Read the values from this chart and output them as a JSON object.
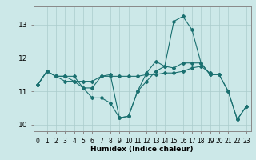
{
  "title": "",
  "xlabel": "Humidex (Indice chaleur)",
  "background_color": "#cce8e8",
  "grid_color": "#aacccc",
  "line_color": "#1a7070",
  "xlim": [
    -0.5,
    23.5
  ],
  "ylim": [
    9.8,
    13.55
  ],
  "yticks": [
    10,
    11,
    12,
    13
  ],
  "xticks": [
    0,
    1,
    2,
    3,
    4,
    5,
    6,
    7,
    8,
    9,
    10,
    11,
    12,
    13,
    14,
    15,
    16,
    17,
    18,
    19,
    20,
    21,
    22,
    23
  ],
  "series": [
    [
      11.2,
      11.6,
      11.45,
      11.45,
      11.45,
      11.1,
      11.1,
      11.45,
      11.5,
      10.2,
      10.25,
      11.0,
      11.55,
      11.9,
      11.75,
      13.1,
      13.25,
      12.85,
      11.85,
      11.5,
      11.5,
      11.0,
      10.15,
      10.55
    ],
    [
      11.2,
      11.6,
      11.45,
      11.45,
      11.3,
      11.1,
      10.8,
      10.8,
      10.65,
      10.2,
      10.25,
      11.0,
      11.3,
      11.6,
      11.75,
      11.7,
      11.85,
      11.85,
      11.85,
      11.5,
      11.5,
      11.0,
      10.15,
      10.55
    ],
    [
      11.2,
      11.6,
      11.45,
      11.3,
      11.3,
      11.3,
      11.3,
      11.45,
      11.45,
      11.45,
      11.45,
      11.45,
      11.5,
      11.5,
      11.55,
      11.55,
      11.6,
      11.7,
      11.75,
      11.55,
      null,
      null,
      null,
      null
    ]
  ]
}
